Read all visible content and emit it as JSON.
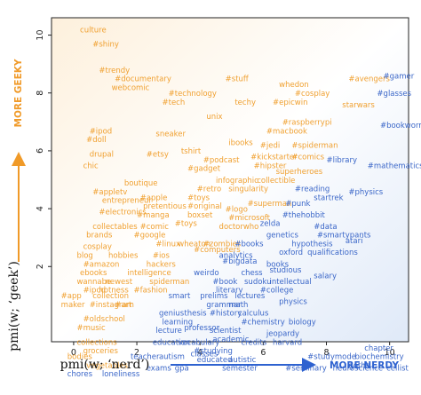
{
  "chart_data": {
    "type": "scatter",
    "xlabel": "pmi(w; ‘nerd’)",
    "ylabel": "pmi(w; ‘geek’)",
    "xlim": [
      -0.7,
      10.6
    ],
    "ylim": [
      -0.6,
      10.6
    ],
    "x_ticks": [
      0,
      2,
      4,
      6,
      8,
      10
    ],
    "y_ticks": [
      2,
      4,
      6,
      8,
      10
    ],
    "x_direction_label": "MORE NERDY",
    "y_direction_label": "MORE GEEKY",
    "colors": {
      "geeky": "#f0a030",
      "nerdy": "#3a66c8",
      "axis_arrow_x": "#2e62d0",
      "axis_arrow_y": "#f09a28"
    },
    "words": [
      {
        "text": "culture",
        "x": 0.2,
        "y": 10.1,
        "group": "geeky"
      },
      {
        "text": "#shiny",
        "x": 0.6,
        "y": 9.6,
        "group": "geeky"
      },
      {
        "text": "#trendy",
        "x": 0.8,
        "y": 8.7,
        "group": "geeky"
      },
      {
        "text": "#documentary",
        "x": 1.3,
        "y": 8.4,
        "group": "geeky"
      },
      {
        "text": "webcomic",
        "x": 1.2,
        "y": 8.1,
        "group": "geeky"
      },
      {
        "text": "#technology",
        "x": 3.0,
        "y": 7.9,
        "group": "geeky"
      },
      {
        "text": "#tech",
        "x": 2.8,
        "y": 7.6,
        "group": "geeky"
      },
      {
        "text": "#stuff",
        "x": 4.8,
        "y": 8.4,
        "group": "geeky"
      },
      {
        "text": "whedon",
        "x": 6.5,
        "y": 8.2,
        "group": "geeky"
      },
      {
        "text": "#avengers",
        "x": 8.7,
        "y": 8.4,
        "group": "geeky"
      },
      {
        "text": "#gamer",
        "x": 9.8,
        "y": 8.5,
        "group": "nerdy"
      },
      {
        "text": "#glasses",
        "x": 9.6,
        "y": 7.9,
        "group": "nerdy"
      },
      {
        "text": "#cosplay",
        "x": 7.0,
        "y": 7.9,
        "group": "geeky"
      },
      {
        "text": "techy",
        "x": 5.1,
        "y": 7.6,
        "group": "geeky"
      },
      {
        "text": "#epicwin",
        "x": 6.3,
        "y": 7.6,
        "group": "geeky"
      },
      {
        "text": "starwars",
        "x": 8.5,
        "y": 7.5,
        "group": "geeky"
      },
      {
        "text": "unix",
        "x": 4.2,
        "y": 7.1,
        "group": "geeky"
      },
      {
        "text": "#raspberrypi",
        "x": 6.6,
        "y": 6.9,
        "group": "geeky"
      },
      {
        "text": "#macbook",
        "x": 6.1,
        "y": 6.6,
        "group": "geeky"
      },
      {
        "text": "#bookworm",
        "x": 9.7,
        "y": 6.8,
        "group": "nerdy"
      },
      {
        "text": "#ipod",
        "x": 0.5,
        "y": 6.6,
        "group": "geeky"
      },
      {
        "text": "#doll",
        "x": 0.4,
        "y": 6.3,
        "group": "geeky"
      },
      {
        "text": "sneaker",
        "x": 2.6,
        "y": 6.5,
        "group": "geeky"
      },
      {
        "text": "ibooks",
        "x": 4.9,
        "y": 6.2,
        "group": "geeky"
      },
      {
        "text": "#jedi",
        "x": 5.9,
        "y": 6.1,
        "group": "geeky"
      },
      {
        "text": "#spiderman",
        "x": 6.9,
        "y": 6.1,
        "group": "geeky"
      },
      {
        "text": "drupal",
        "x": 0.5,
        "y": 5.8,
        "group": "geeky"
      },
      {
        "text": "#etsy",
        "x": 2.3,
        "y": 5.8,
        "group": "geeky"
      },
      {
        "text": "tshirt",
        "x": 3.4,
        "y": 5.9,
        "group": "geeky"
      },
      {
        "text": "#podcast",
        "x": 4.1,
        "y": 5.6,
        "group": "geeky"
      },
      {
        "text": "#kickstarter",
        "x": 5.6,
        "y": 5.7,
        "group": "geeky"
      },
      {
        "text": "#comics",
        "x": 6.9,
        "y": 5.7,
        "group": "geeky"
      },
      {
        "text": "#library",
        "x": 8.0,
        "y": 5.6,
        "group": "nerdy"
      },
      {
        "text": "#mathematics",
        "x": 9.3,
        "y": 5.4,
        "group": "nerdy"
      },
      {
        "text": "chic",
        "x": 0.3,
        "y": 5.4,
        "group": "geeky"
      },
      {
        "text": "#gadget",
        "x": 3.6,
        "y": 5.3,
        "group": "geeky"
      },
      {
        "text": "#hipster",
        "x": 5.7,
        "y": 5.4,
        "group": "geeky"
      },
      {
        "text": "superheroes",
        "x": 6.4,
        "y": 5.2,
        "group": "geeky"
      },
      {
        "text": "boutique",
        "x": 1.6,
        "y": 4.8,
        "group": "geeky"
      },
      {
        "text": "infographic",
        "x": 4.5,
        "y": 4.9,
        "group": "geeky"
      },
      {
        "text": "collectible",
        "x": 5.8,
        "y": 4.9,
        "group": "geeky"
      },
      {
        "text": "#retro",
        "x": 3.9,
        "y": 4.6,
        "group": "geeky"
      },
      {
        "text": "singularity",
        "x": 4.9,
        "y": 4.6,
        "group": "geeky"
      },
      {
        "text": "#reading",
        "x": 7.0,
        "y": 4.6,
        "group": "nerdy"
      },
      {
        "text": "#physics",
        "x": 8.7,
        "y": 4.5,
        "group": "nerdy"
      },
      {
        "text": "#appletv",
        "x": 0.6,
        "y": 4.5,
        "group": "geeky"
      },
      {
        "text": "startrek",
        "x": 7.6,
        "y": 4.3,
        "group": "nerdy"
      },
      {
        "text": "entrepreneur",
        "x": 0.9,
        "y": 4.2,
        "group": "geeky"
      },
      {
        "text": "#apple",
        "x": 2.1,
        "y": 4.3,
        "group": "geeky"
      },
      {
        "text": "#toys",
        "x": 3.6,
        "y": 4.3,
        "group": "geeky"
      },
      {
        "text": "#superman",
        "x": 5.5,
        "y": 4.1,
        "group": "geeky"
      },
      {
        "text": "#punk",
        "x": 6.7,
        "y": 4.1,
        "group": "nerdy"
      },
      {
        "text": "pretentious",
        "x": 2.2,
        "y": 4.0,
        "group": "geeky"
      },
      {
        "text": "#original",
        "x": 3.6,
        "y": 4.0,
        "group": "geeky"
      },
      {
        "text": "#electronics",
        "x": 0.8,
        "y": 3.8,
        "group": "geeky"
      },
      {
        "text": "#manga",
        "x": 2.0,
        "y": 3.7,
        "group": "geeky"
      },
      {
        "text": "boxset",
        "x": 3.6,
        "y": 3.7,
        "group": "geeky"
      },
      {
        "text": "#logo",
        "x": 4.8,
        "y": 3.9,
        "group": "geeky"
      },
      {
        "text": "#microsoft",
        "x": 4.9,
        "y": 3.6,
        "group": "geeky"
      },
      {
        "text": "#thehobbit",
        "x": 6.6,
        "y": 3.7,
        "group": "nerdy"
      },
      {
        "text": "#toys",
        "x": 3.2,
        "y": 3.4,
        "group": "geeky"
      },
      {
        "text": "zelda",
        "x": 5.9,
        "y": 3.4,
        "group": "nerdy"
      },
      {
        "text": "#data",
        "x": 7.6,
        "y": 3.3,
        "group": "nerdy"
      },
      {
        "text": "collectables",
        "x": 0.6,
        "y": 3.3,
        "group": "geeky"
      },
      {
        "text": "#comic",
        "x": 2.1,
        "y": 3.3,
        "group": "geeky"
      },
      {
        "text": "doctorwho",
        "x": 4.6,
        "y": 3.3,
        "group": "geeky"
      },
      {
        "text": "brands",
        "x": 0.4,
        "y": 3.0,
        "group": "geeky"
      },
      {
        "text": "#google",
        "x": 1.9,
        "y": 3.0,
        "group": "geeky"
      },
      {
        "text": "genetics",
        "x": 6.1,
        "y": 3.0,
        "group": "nerdy"
      },
      {
        "text": "#smartypants",
        "x": 7.7,
        "y": 3.0,
        "group": "nerdy"
      },
      {
        "text": "#linux",
        "x": 2.6,
        "y": 2.7,
        "group": "geeky"
      },
      {
        "text": "wheaton",
        "x": 3.3,
        "y": 2.7,
        "group": "geeky"
      },
      {
        "text": "#zombies",
        "x": 4.1,
        "y": 2.7,
        "group": "geeky"
      },
      {
        "text": "#books",
        "x": 5.1,
        "y": 2.7,
        "group": "nerdy"
      },
      {
        "text": "hypothesis",
        "x": 6.9,
        "y": 2.7,
        "group": "nerdy"
      },
      {
        "text": "atari",
        "x": 8.6,
        "y": 2.8,
        "group": "nerdy"
      },
      {
        "text": "cosplay",
        "x": 0.3,
        "y": 2.6,
        "group": "geeky"
      },
      {
        "text": "blog",
        "x": 0.1,
        "y": 2.3,
        "group": "geeky"
      },
      {
        "text": "hobbies",
        "x": 1.1,
        "y": 2.3,
        "group": "geeky"
      },
      {
        "text": "#ios",
        "x": 2.5,
        "y": 2.3,
        "group": "geeky"
      },
      {
        "text": "#computers",
        "x": 3.8,
        "y": 2.5,
        "group": "geeky"
      },
      {
        "text": "analytics",
        "x": 4.6,
        "y": 2.3,
        "group": "nerdy"
      },
      {
        "text": "oxford",
        "x": 6.5,
        "y": 2.4,
        "group": "nerdy"
      },
      {
        "text": "qualifications",
        "x": 7.4,
        "y": 2.4,
        "group": "nerdy"
      },
      {
        "text": "#amazon",
        "x": 0.3,
        "y": 2.0,
        "group": "geeky"
      },
      {
        "text": "hackers",
        "x": 2.3,
        "y": 2.0,
        "group": "geeky"
      },
      {
        "text": "#bigdata",
        "x": 4.7,
        "y": 2.1,
        "group": "nerdy"
      },
      {
        "text": "books",
        "x": 6.1,
        "y": 2.0,
        "group": "nerdy"
      },
      {
        "text": "ebooks",
        "x": 0.2,
        "y": 1.7,
        "group": "geeky"
      },
      {
        "text": "intelligence",
        "x": 1.7,
        "y": 1.7,
        "group": "geeky"
      },
      {
        "text": "weirdo",
        "x": 3.8,
        "y": 1.7,
        "group": "nerdy"
      },
      {
        "text": "chess",
        "x": 5.3,
        "y": 1.7,
        "group": "nerdy"
      },
      {
        "text": "studious",
        "x": 6.2,
        "y": 1.8,
        "group": "nerdy"
      },
      {
        "text": "salary",
        "x": 7.6,
        "y": 1.6,
        "group": "nerdy"
      },
      {
        "text": "wannabe",
        "x": 0.1,
        "y": 1.4,
        "group": "geeky"
      },
      {
        "text": "newest",
        "x": 1.0,
        "y": 1.4,
        "group": "geeky"
      },
      {
        "text": "spiderman",
        "x": 2.4,
        "y": 1.4,
        "group": "geeky"
      },
      {
        "text": "#book",
        "x": 4.4,
        "y": 1.4,
        "group": "nerdy"
      },
      {
        "text": "sudoku",
        "x": 5.4,
        "y": 1.4,
        "group": "nerdy"
      },
      {
        "text": "intellectual",
        "x": 6.2,
        "y": 1.4,
        "group": "nerdy"
      },
      {
        "text": "#ipod",
        "x": 0.3,
        "y": 1.1,
        "group": "geeky"
      },
      {
        "text": "hotness",
        "x": 0.8,
        "y": 1.1,
        "group": "geeky"
      },
      {
        "text": "#fashion",
        "x": 1.9,
        "y": 1.1,
        "group": "geeky"
      },
      {
        "text": "literary",
        "x": 4.5,
        "y": 1.1,
        "group": "nerdy"
      },
      {
        "text": "#college",
        "x": 5.9,
        "y": 1.1,
        "group": "nerdy"
      },
      {
        "text": "#app",
        "x": -0.4,
        "y": 0.9,
        "group": "geeky"
      },
      {
        "text": "collection",
        "x": 0.6,
        "y": 0.9,
        "group": "geeky"
      },
      {
        "text": "smart",
        "x": 3.0,
        "y": 0.9,
        "group": "nerdy"
      },
      {
        "text": "prelims",
        "x": 4.0,
        "y": 0.9,
        "group": "nerdy"
      },
      {
        "text": "lectures",
        "x": 5.1,
        "y": 0.9,
        "group": "nerdy"
      },
      {
        "text": "maker",
        "x": -0.4,
        "y": 0.6,
        "group": "geeky"
      },
      {
        "text": "#instagram",
        "x": 0.5,
        "y": 0.6,
        "group": "geeky"
      },
      {
        "text": "#art",
        "x": 1.3,
        "y": 0.6,
        "group": "geeky"
      },
      {
        "text": "grammar",
        "x": 4.2,
        "y": 0.6,
        "group": "nerdy"
      },
      {
        "text": "math",
        "x": 4.9,
        "y": 0.6,
        "group": "nerdy"
      },
      {
        "text": "physics",
        "x": 6.5,
        "y": 0.7,
        "group": "nerdy"
      },
      {
        "text": "genius",
        "x": 2.7,
        "y": 0.3,
        "group": "nerdy"
      },
      {
        "text": "thesis",
        "x": 3.5,
        "y": 0.3,
        "group": "nerdy"
      },
      {
        "text": "#history",
        "x": 4.3,
        "y": 0.3,
        "group": "nerdy"
      },
      {
        "text": "calculus",
        "x": 5.2,
        "y": 0.3,
        "group": "nerdy"
      },
      {
        "text": "#oldschool",
        "x": 0.3,
        "y": 0.1,
        "group": "geeky"
      },
      {
        "text": "learning",
        "x": 2.8,
        "y": 0.0,
        "group": "nerdy"
      },
      {
        "text": "professor",
        "x": 3.5,
        "y": -0.2,
        "group": "nerdy"
      },
      {
        "text": "#chemistry",
        "x": 5.3,
        "y": 0.0,
        "group": "nerdy"
      },
      {
        "text": "biology",
        "x": 6.8,
        "y": 0.0,
        "group": "nerdy"
      },
      {
        "text": "#music",
        "x": 0.1,
        "y": -0.2,
        "group": "geeky"
      },
      {
        "text": "lecture",
        "x": 2.6,
        "y": -0.3,
        "group": "nerdy"
      },
      {
        "text": "scientist",
        "x": 4.3,
        "y": -0.3,
        "group": "nerdy"
      },
      {
        "text": "jeopardy",
        "x": 6.1,
        "y": -0.4,
        "group": "nerdy"
      },
      {
        "text": "collections",
        "x": 0.1,
        "y": -0.7,
        "group": "geeky"
      },
      {
        "text": "education",
        "x": 2.5,
        "y": -0.7,
        "group": "nerdy"
      },
      {
        "text": "vocabulary",
        "x": 3.3,
        "y": -0.7,
        "group": "nerdy"
      },
      {
        "text": "academic",
        "x": 4.4,
        "y": -0.6,
        "group": "nerdy"
      },
      {
        "text": "credits",
        "x": 5.3,
        "y": -0.7,
        "group": "nerdy"
      },
      {
        "text": "harvard",
        "x": 6.3,
        "y": -0.7,
        "group": "nerdy"
      },
      {
        "text": "groceries",
        "x": 0.3,
        "y": -1.0,
        "group": "geeky"
      },
      {
        "text": "#studying",
        "x": 3.8,
        "y": -1.0,
        "group": "nerdy"
      },
      {
        "text": "chapter",
        "x": 9.2,
        "y": -0.9,
        "group": "nerdy"
      },
      {
        "text": "bodies",
        "x": -0.2,
        "y": -1.2,
        "group": "geeky"
      },
      {
        "text": "teacher",
        "x": 1.8,
        "y": -1.2,
        "group": "nerdy"
      },
      {
        "text": "autism",
        "x": 2.7,
        "y": -1.2,
        "group": "nerdy"
      },
      {
        "text": "classes",
        "x": 3.7,
        "y": -1.1,
        "group": "nerdy"
      },
      {
        "text": "educated",
        "x": 3.9,
        "y": -1.3,
        "group": "nerdy"
      },
      {
        "text": "autistic",
        "x": 4.9,
        "y": -1.3,
        "group": "nerdy"
      },
      {
        "text": "#studymode",
        "x": 7.4,
        "y": -1.2,
        "group": "nerdy"
      },
      {
        "text": "biochemistry",
        "x": 8.9,
        "y": -1.2,
        "group": "nerdy"
      },
      {
        "text": "vegetables",
        "x": 0.4,
        "y": -1.5,
        "group": "geeky"
      },
      {
        "text": "goths",
        "x": 8.7,
        "y": -1.5,
        "group": "nerdy"
      },
      {
        "text": "chores",
        "x": -0.2,
        "y": -1.8,
        "group": "nerdy"
      },
      {
        "text": "loneliness",
        "x": 0.9,
        "y": -1.8,
        "group": "nerdy"
      },
      {
        "text": "exams",
        "x": 2.3,
        "y": -1.6,
        "group": "nerdy"
      },
      {
        "text": "gpa",
        "x": 3.2,
        "y": -1.6,
        "group": "nerdy"
      },
      {
        "text": "semester",
        "x": 4.7,
        "y": -1.6,
        "group": "nerdy"
      },
      {
        "text": "#seminary",
        "x": 6.7,
        "y": -1.6,
        "group": "nerdy"
      },
      {
        "text": "neuroscience",
        "x": 8.2,
        "y": -1.6,
        "group": "nerdy"
      },
      {
        "text": "cellist",
        "x": 9.9,
        "y": -1.6,
        "group": "nerdy"
      }
    ]
  }
}
